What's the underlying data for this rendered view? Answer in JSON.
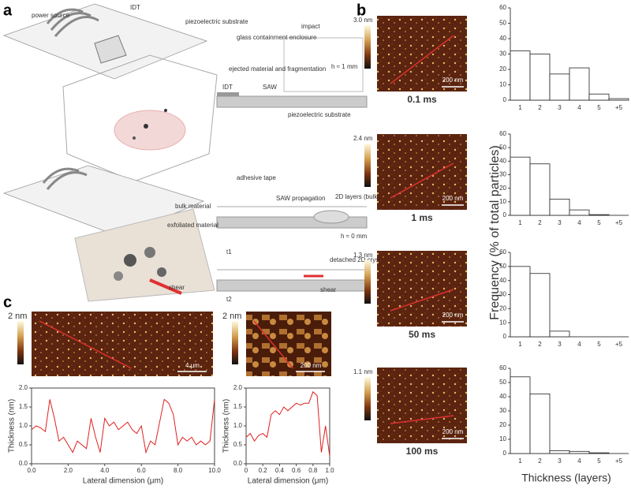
{
  "panel_labels": [
    "a",
    "b",
    "c"
  ],
  "schematic": {
    "labels": [
      "power source",
      "IDT",
      "piezoelectric substrate",
      "glass containment enclosure",
      "impact",
      "ejected material and fragmentation",
      "h ≈ 1 mm",
      "IDT",
      "SAW",
      "piezoelectric substrate",
      "adhesive tape",
      "bulk material",
      "exfoliated material",
      "SAW propagation",
      "2D layers (bulk)",
      "h ≈ 0 mm",
      "detached 2D crystal",
      "shear",
      "shear",
      "t1",
      "t2"
    ]
  },
  "afm_b": [
    {
      "scale": "3.0 nm",
      "scale_bar": "200 nm",
      "time": "0.1 ms"
    },
    {
      "scale": "2.4 nm",
      "scale_bar": "200 nm",
      "time": "1 ms"
    },
    {
      "scale": "1.3 nm",
      "scale_bar": "200 nm",
      "time": "50 ms"
    },
    {
      "scale": "1.1 nm",
      "scale_bar": "200 nm",
      "time": "100 ms"
    }
  ],
  "afm_c": [
    {
      "scale": "2 nm",
      "scale_bar": "4 μm"
    },
    {
      "scale": "2 nm",
      "scale_bar": "200 nm"
    }
  ],
  "histogram_axes": {
    "ylabel": "Frequency (% of total particles)",
    "xlabel": "Thickness (layers)"
  },
  "chart_data": [
    {
      "type": "bar",
      "categories": [
        "1",
        "2",
        "3",
        "4",
        "5",
        "+5"
      ],
      "values": [
        32,
        30,
        17,
        21,
        4,
        1
      ],
      "color": "#ffffff",
      "ylim": [
        0,
        60
      ],
      "yticks": [
        0,
        10,
        20,
        30,
        40,
        50,
        60
      ]
    },
    {
      "type": "bar",
      "categories": [
        "1",
        "2",
        "3",
        "4",
        "5",
        "+5"
      ],
      "values": [
        43,
        38,
        12,
        4,
        0.5,
        0
      ],
      "color": "#ffffff",
      "ylim": [
        0,
        60
      ],
      "yticks": [
        0,
        10,
        20,
        30,
        40,
        50,
        60
      ]
    },
    {
      "type": "bar",
      "categories": [
        "1",
        "2",
        "3",
        "4",
        "5",
        "+5"
      ],
      "values": [
        50,
        45,
        4,
        0,
        0,
        0
      ],
      "color": "#ffffff",
      "ylim": [
        0,
        60
      ],
      "yticks": [
        0,
        10,
        20,
        30,
        40,
        50,
        60
      ]
    },
    {
      "type": "bar",
      "categories": [
        "1",
        "2",
        "3",
        "4",
        "5",
        "+5"
      ],
      "values": [
        54,
        42,
        2,
        1.5,
        0.5,
        0
      ],
      "color": "#ffffff",
      "ylim": [
        0,
        60
      ],
      "yticks": [
        0,
        10,
        20,
        30,
        40,
        50,
        60
      ]
    },
    {
      "type": "line",
      "xlabel": "Lateral dimension (μm)",
      "ylabel": "Thickness (nm)",
      "color": "#e02020",
      "x": [
        0,
        0.25,
        0.5,
        0.75,
        1,
        1.25,
        1.5,
        1.75,
        2,
        2.25,
        2.5,
        2.75,
        3,
        3.25,
        3.5,
        3.75,
        4,
        4.25,
        4.5,
        4.75,
        5,
        5.25,
        5.5,
        5.75,
        6,
        6.25,
        6.5,
        6.75,
        7,
        7.25,
        7.5,
        7.75,
        8,
        8.25,
        8.5,
        8.75,
        9,
        9.25,
        9.5,
        9.75,
        10
      ],
      "values": [
        0.9,
        1.0,
        0.95,
        0.85,
        1.7,
        1.2,
        0.6,
        0.7,
        0.5,
        0.3,
        0.6,
        0.5,
        0.4,
        1.2,
        0.7,
        0.3,
        1.2,
        1.0,
        1.1,
        0.9,
        1.0,
        1.1,
        0.9,
        0.8,
        1.0,
        0.3,
        0.6,
        0.5,
        1.1,
        1.7,
        1.6,
        1.3,
        0.5,
        0.7,
        0.6,
        0.7,
        0.5,
        0.6,
        0.5,
        0.6,
        1.7
      ],
      "xlim": [
        0,
        10
      ],
      "xticks": [
        {
          "value": 0,
          "label": "0.0"
        },
        {
          "value": 2,
          "label": "2.0"
        },
        {
          "value": 4,
          "label": "4.0"
        },
        {
          "value": 6,
          "label": "6.0"
        },
        {
          "value": 8,
          "label": "8.0"
        },
        {
          "value": 10,
          "label": "10.0"
        }
      ],
      "ylim": [
        0,
        2
      ],
      "yticks": [
        {
          "value": 0,
          "label": "0.0"
        },
        0.5,
        {
          "value": 1,
          "label": "1.0"
        },
        1.5,
        {
          "value": 2,
          "label": "2.0"
        }
      ]
    },
    {
      "type": "line",
      "xlabel": "Lateral dimension (μm)",
      "ylabel": "Thickness (nm)",
      "color": "#e02020",
      "x": [
        0,
        0.05,
        0.1,
        0.15,
        0.2,
        0.25,
        0.3,
        0.35,
        0.4,
        0.45,
        0.5,
        0.55,
        0.6,
        0.65,
        0.7,
        0.75,
        0.8,
        0.85,
        0.9,
        0.95,
        1
      ],
      "values": [
        0.7,
        0.8,
        0.6,
        0.75,
        0.8,
        0.7,
        1.3,
        1.4,
        1.3,
        1.5,
        1.4,
        1.5,
        1.6,
        1.55,
        1.6,
        1.6,
        1.9,
        1.8,
        0.3,
        1.0,
        0.2
      ],
      "xlim": [
        0,
        1
      ],
      "xticks": [
        0,
        0.2,
        0.4,
        0.6,
        0.8,
        {
          "value": 1,
          "label": "1.0"
        }
      ],
      "ylim": [
        0,
        2
      ],
      "yticks": [
        {
          "value": 0,
          "label": "0.0"
        },
        0.5,
        {
          "value": 1,
          "label": "1.0"
        },
        1.5,
        {
          "value": 2,
          "label": "2.0"
        }
      ]
    }
  ]
}
